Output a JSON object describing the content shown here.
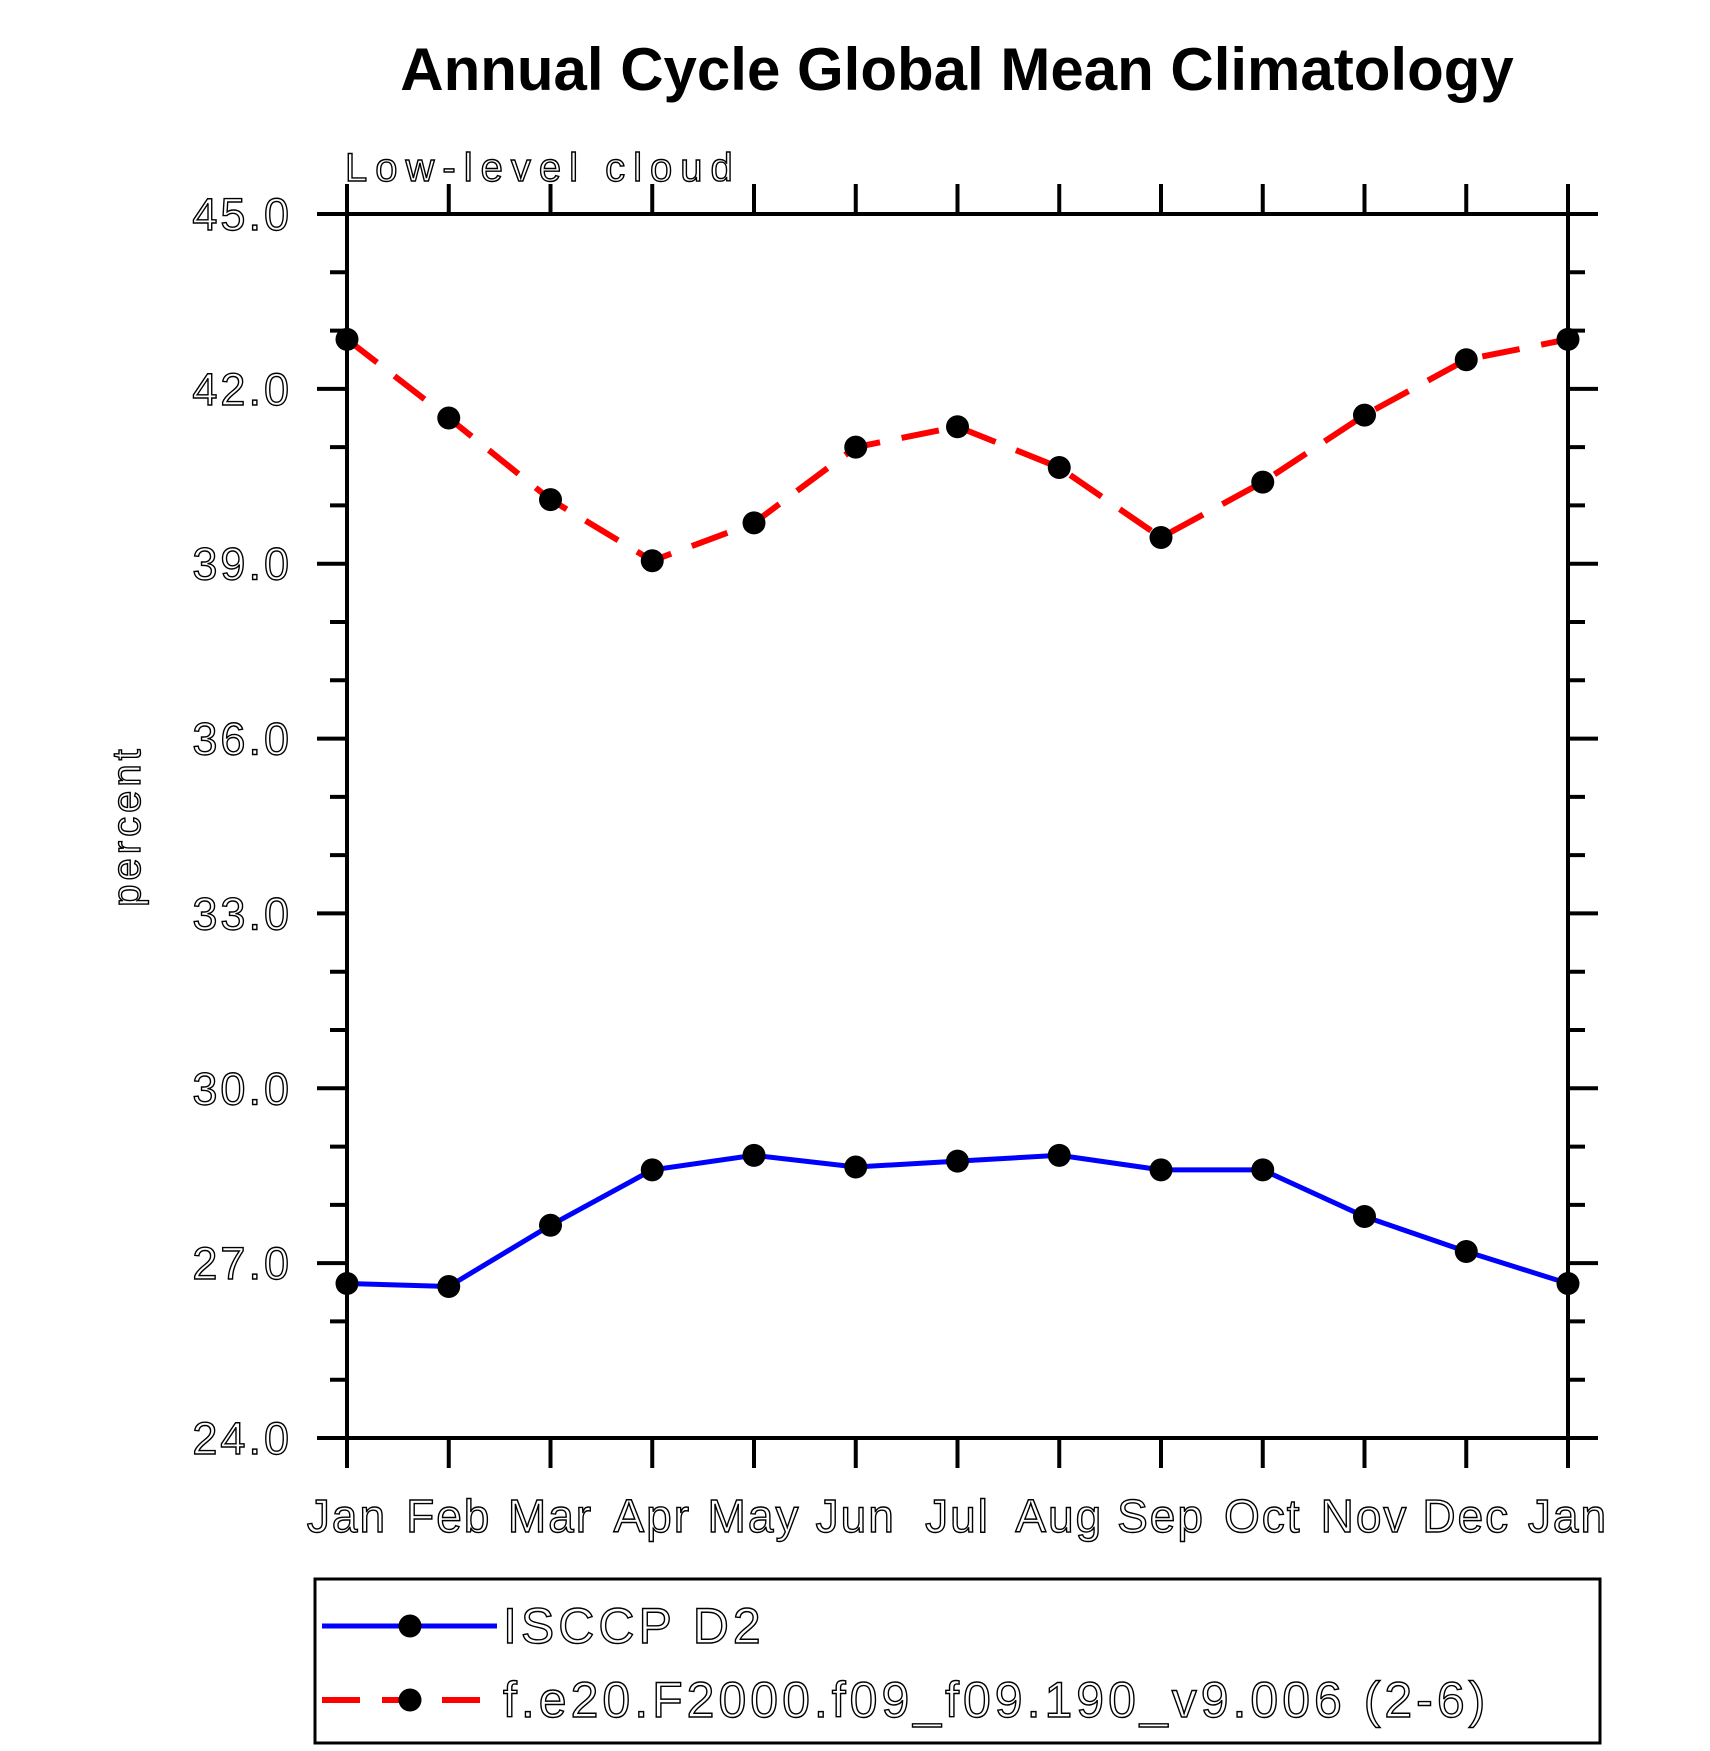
{
  "chart_data": {
    "type": "line",
    "title": "Annual Cycle Global Mean Climatology",
    "subtitle": "Low-level cloud",
    "ylabel": "percent",
    "x_categories": [
      "Jan",
      "Feb",
      "Mar",
      "Apr",
      "May",
      "Jun",
      "Jul",
      "Aug",
      "Sep",
      "Oct",
      "Nov",
      "Dec",
      "Jan"
    ],
    "ylim": [
      24.0,
      45.0
    ],
    "ytick_values": [
      24,
      27,
      30,
      33,
      36,
      39,
      42,
      45
    ],
    "ytick_labels": [
      "24.0",
      "27.0",
      "30.0",
      "33.0",
      "36.0",
      "39.0",
      "42.0",
      "45.0"
    ],
    "minor_tick_step": 1,
    "grid": false,
    "legend_position": "bottom-left box below plot",
    "axis_color": "#000000",
    "background_color": "#ffffff",
    "series": [
      {
        "name": "ISCCP D2",
        "color": "#0000ff",
        "line_style": "solid",
        "marker": "filled-circle",
        "marker_color": "#000000",
        "values": [
          26.65,
          26.6,
          27.65,
          28.6,
          28.85,
          28.65,
          28.75,
          28.85,
          28.6,
          28.6,
          27.8,
          27.2,
          26.65
        ]
      },
      {
        "name": "f.e20.F2000.f09_f09.190_v9.006 (2-6)",
        "color": "#ff0000",
        "line_style": "dashed",
        "marker": "filled-circle",
        "marker_color": "#000000",
        "values": [
          42.85,
          41.5,
          40.1,
          39.05,
          39.7,
          41.0,
          41.35,
          40.65,
          39.45,
          40.4,
          41.55,
          42.5,
          42.85
        ]
      }
    ]
  }
}
